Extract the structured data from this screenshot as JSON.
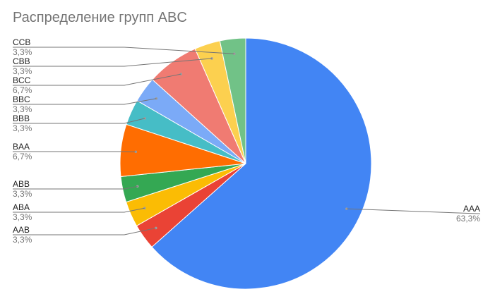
{
  "chart_data": {
    "type": "pie",
    "title": "Распределение групп ABC",
    "slices": [
      {
        "label": "AAA",
        "pct_label": "63,3%",
        "value": 63.3,
        "color": "#4285F4"
      },
      {
        "label": "AAB",
        "pct_label": "3,3%",
        "value": 3.3,
        "color": "#EA4335"
      },
      {
        "label": "ABA",
        "pct_label": "3,3%",
        "value": 3.3,
        "color": "#FBBC04"
      },
      {
        "label": "ABB",
        "pct_label": "3,3%",
        "value": 3.3,
        "color": "#34A853"
      },
      {
        "label": "BAA",
        "pct_label": "6,7%",
        "value": 6.7,
        "color": "#FF6D01"
      },
      {
        "label": "BBB",
        "pct_label": "3,3%",
        "value": 3.3,
        "color": "#46BDC6"
      },
      {
        "label": "BBC",
        "pct_label": "3,3%",
        "value": 3.3,
        "color": "#7BAAF7"
      },
      {
        "label": "BCC",
        "pct_label": "6,7%",
        "value": 6.7,
        "color": "#F07B72"
      },
      {
        "label": "CBB",
        "pct_label": "3,3%",
        "value": 3.3,
        "color": "#FCD04F"
      },
      {
        "label": "CCB",
        "pct_label": "3,3%",
        "value": 3.3,
        "color": "#71C287"
      }
    ]
  }
}
